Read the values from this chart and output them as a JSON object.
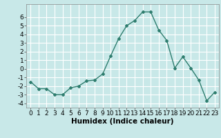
{
  "x": [
    0,
    1,
    2,
    3,
    4,
    5,
    6,
    7,
    8,
    9,
    10,
    11,
    12,
    13,
    14,
    15,
    16,
    17,
    18,
    19,
    20,
    21,
    22,
    23
  ],
  "y": [
    -1.5,
    -2.3,
    -2.3,
    -3.0,
    -3.0,
    -2.2,
    -2.0,
    -1.4,
    -1.3,
    -0.6,
    1.5,
    3.5,
    5.0,
    5.6,
    6.6,
    6.6,
    4.5,
    3.3,
    0.1,
    1.4,
    0.1,
    -1.3,
    -3.7,
    -2.7
  ],
  "line_color": "#2e7d6e",
  "marker": "D",
  "marker_size": 2.0,
  "bg_color": "#c8e8e8",
  "grid_color": "#ffffff",
  "xlabel": "Humidex (Indice chaleur)",
  "xlim": [
    -0.5,
    23.5
  ],
  "ylim": [
    -4.5,
    7.5
  ],
  "yticks": [
    -4,
    -3,
    -2,
    -1,
    0,
    1,
    2,
    3,
    4,
    5,
    6
  ],
  "xticks": [
    0,
    1,
    2,
    3,
    4,
    5,
    6,
    7,
    8,
    9,
    10,
    11,
    12,
    13,
    14,
    15,
    16,
    17,
    18,
    19,
    20,
    21,
    22,
    23
  ],
  "tick_fontsize": 6.5,
  "xlabel_fontsize": 7.5,
  "line_width": 1.0
}
